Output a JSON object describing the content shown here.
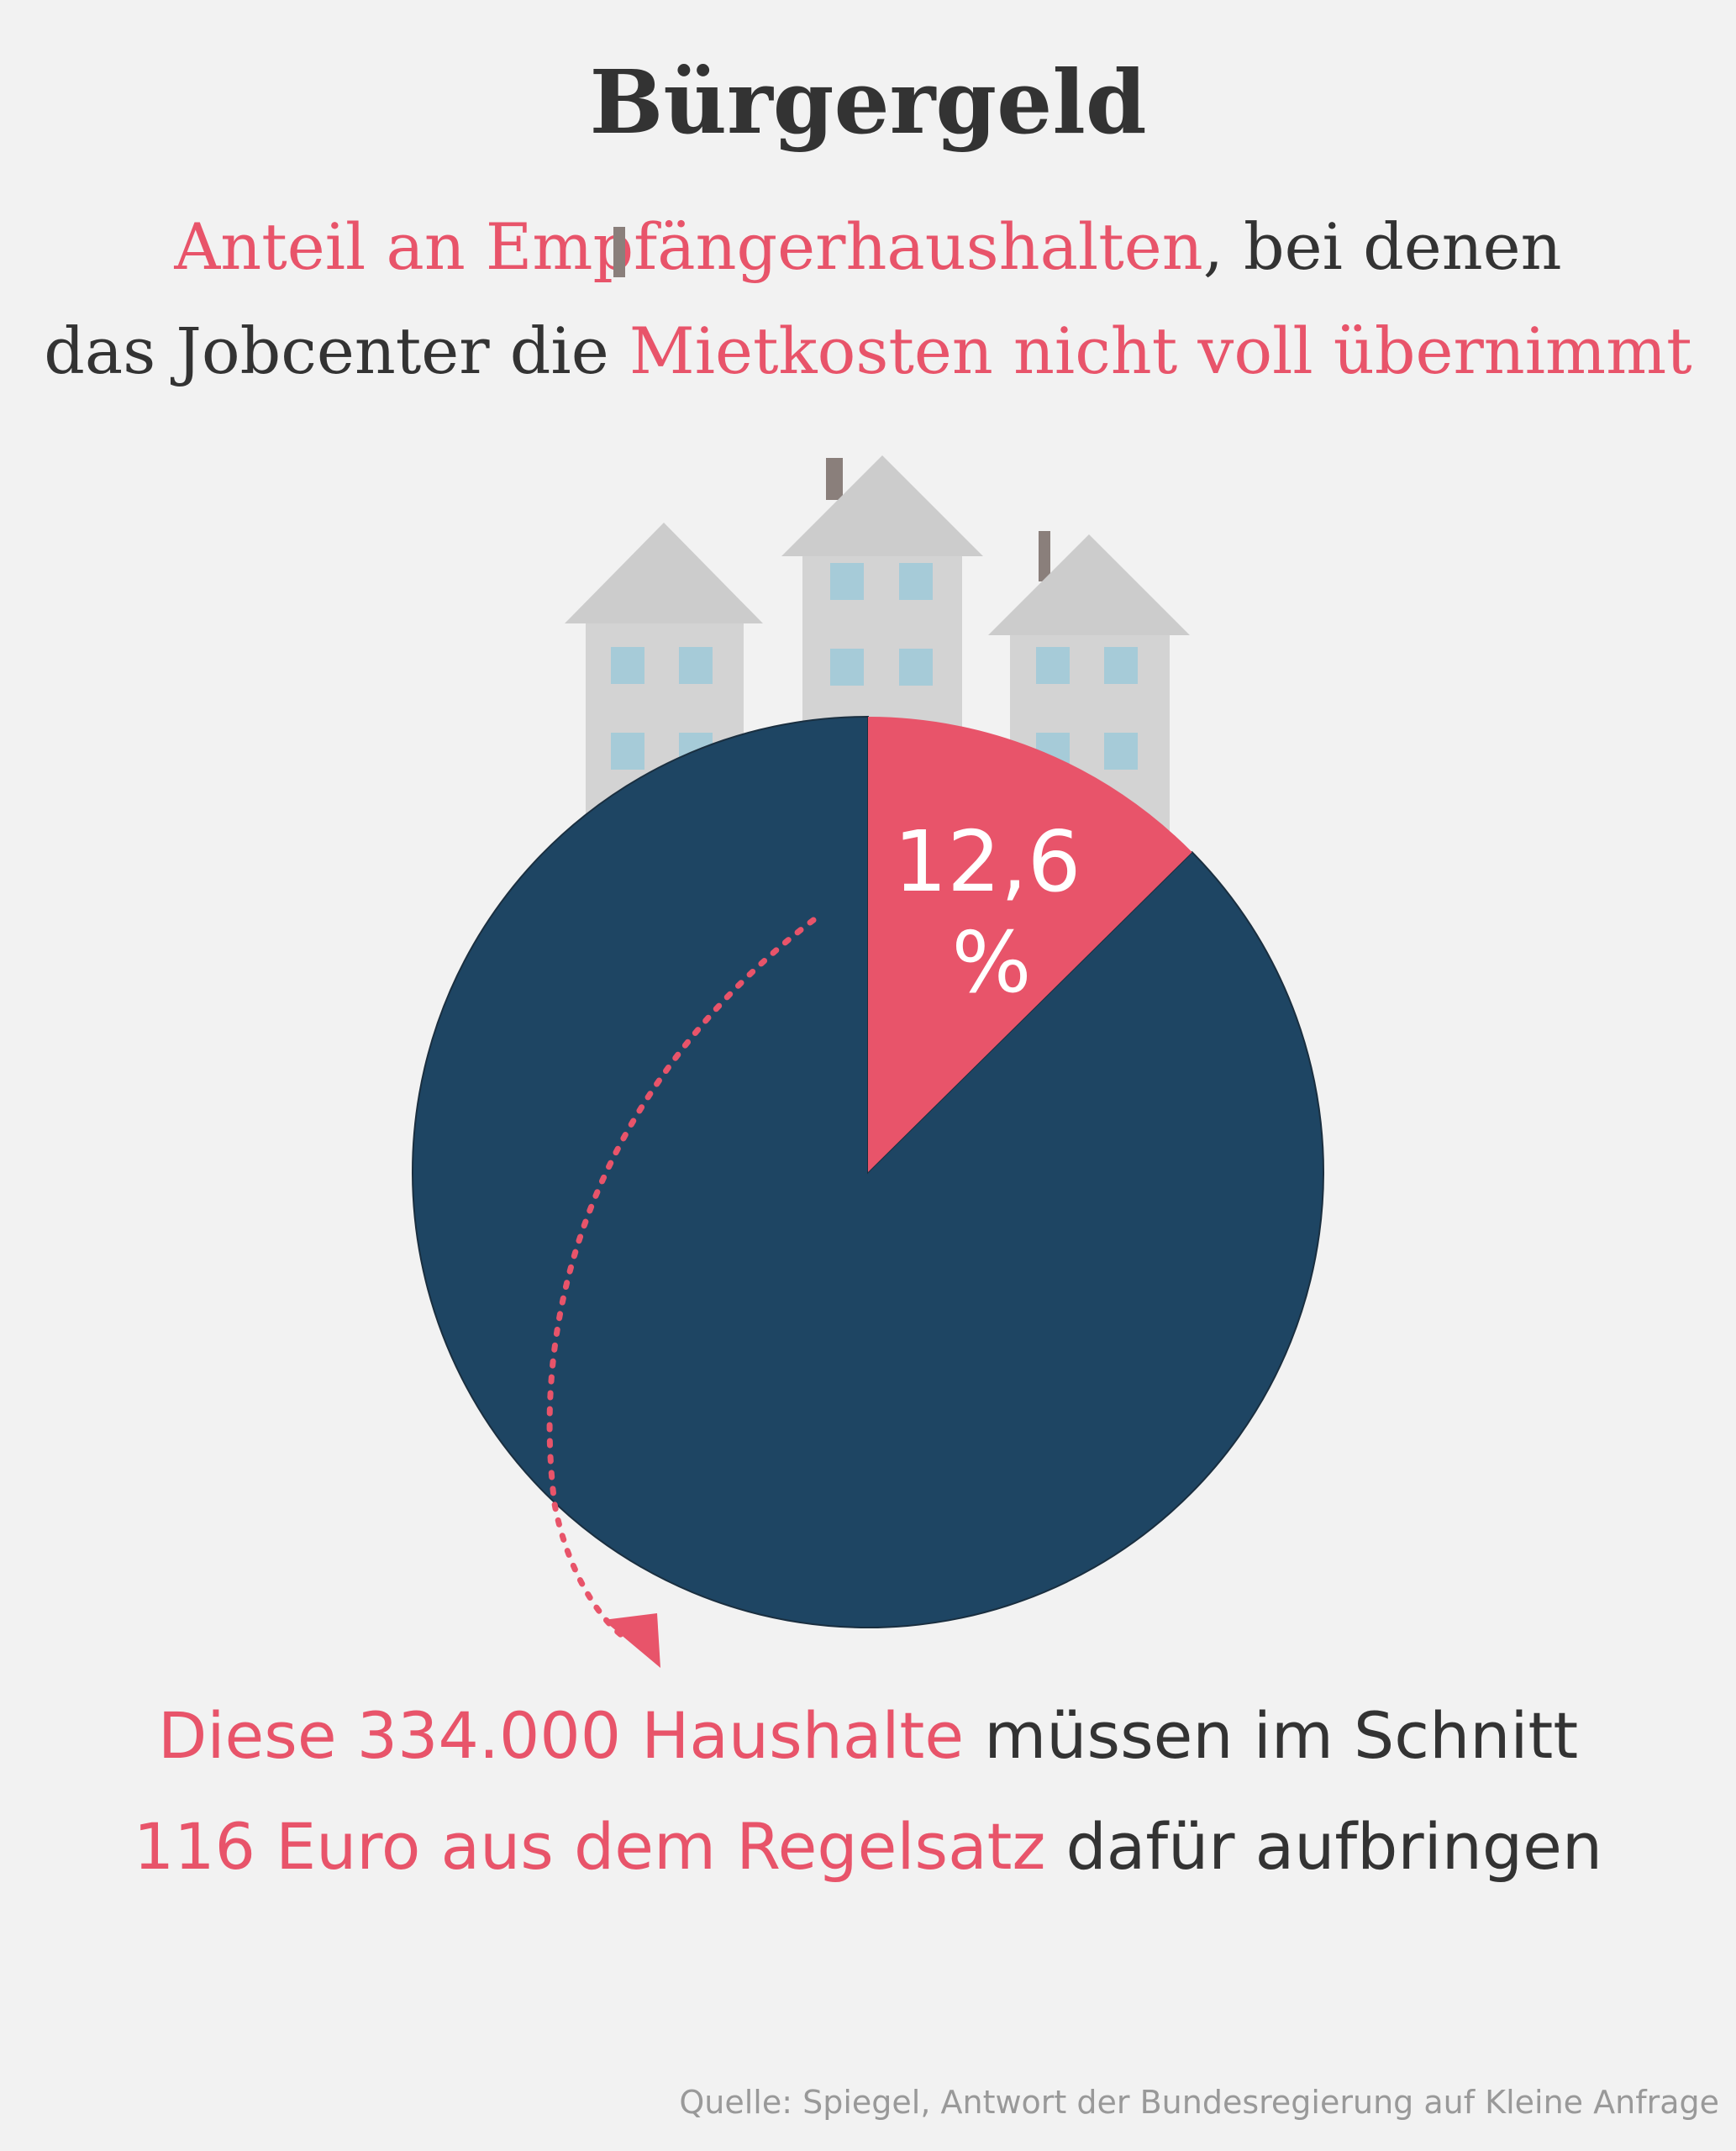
{
  "title": "Bürgergeld",
  "subtitle": {
    "line1_highlight": "Anteil an Empfängerhaushalten",
    "line1_rest": ", bei denen",
    "line2_prefix": "das Jobcenter die ",
    "line2_highlight": "Mietkosten nicht voll übernimmt"
  },
  "caption": {
    "line1_highlight": "Diese 334.000 Haushalte",
    "line1_rest": " müssen im Schnitt",
    "line2_highlight": "116 Euro aus dem Regelsatz",
    "line2_rest": " dafür aufbringen"
  },
  "source": "Quelle: Spiegel, Antwort der Bundesregierung auf Kleine Anfrage",
  "colors": {
    "highlight": "#e8546a",
    "rest": "#1e4563",
    "house": "#cccccc",
    "window": "#a6cbd8",
    "text": "#333333",
    "background": "#f2f2f2"
  },
  "icons": [
    "house-icon",
    "house-icon",
    "house-icon",
    "dotted-arrow-icon"
  ],
  "chart_data": {
    "type": "pie",
    "slices": [
      {
        "value": 12.6,
        "label_value": "12,6",
        "label_unit": "%",
        "color": "#e8546a"
      },
      {
        "value": 87.4,
        "color": "#1e4563"
      }
    ]
  }
}
